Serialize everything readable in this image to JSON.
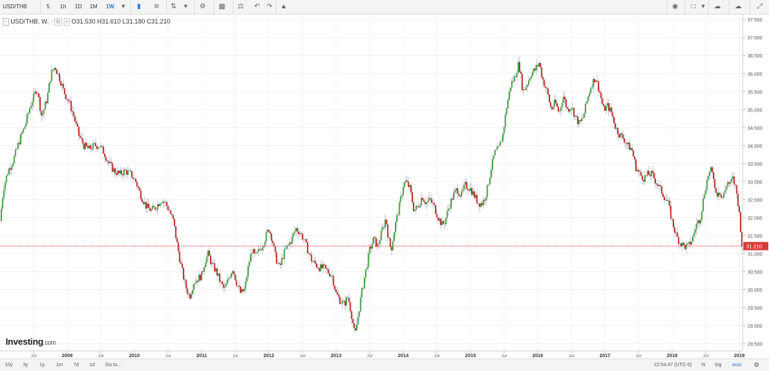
{
  "toolbar": {
    "symbol": "USD/THB",
    "periods": [
      "5",
      "1h",
      "1D",
      "1M",
      "1W"
    ],
    "active_period": "1W"
  },
  "legend": {
    "title": "USD/THB, W,",
    "open": "O31.530",
    "high": "H31.610",
    "low": "L31.180",
    "close": "C31.210"
  },
  "bottombar": {
    "ranges": [
      "10y",
      "3y",
      "1y",
      "1m",
      "7d",
      "1d"
    ],
    "goto": "Go to...",
    "time": "22:54:47 (UTC-5)",
    "percent": "%",
    "log": "log",
    "auto": "auto"
  },
  "logo": {
    "name": "Investing",
    "suffix": ".com"
  },
  "chart_data": {
    "type": "candlestick",
    "y_ticks": [
      "28.500",
      "29.000",
      "29.500",
      "30.000",
      "30.500",
      "31.000",
      "31.500",
      "32.000",
      "32.500",
      "33.000",
      "33.500",
      "34.000",
      "34.500",
      "35.000",
      "35.500",
      "36.000",
      "36.500",
      "37.000",
      "37.500"
    ],
    "ylim": [
      28.3,
      37.6
    ],
    "x_tick_labels": [
      "Jul",
      "2009",
      "Jul",
      "2010",
      "Jul",
      "2011",
      "Jul",
      "2012",
      "Jul",
      "2013",
      "Jul",
      "2014",
      "Jul",
      "2015",
      "Jul",
      "2016",
      "Jul",
      "2017",
      "Jul",
      "2018",
      "Jul",
      "2019"
    ],
    "x_tick_dates": [
      2008.5,
      2009,
      2009.5,
      2010,
      2010.5,
      2011,
      2011.5,
      2012,
      2012.5,
      2013,
      2013.5,
      2014,
      2014.5,
      2015,
      2015.5,
      2016,
      2016.5,
      2017,
      2017.5,
      2018,
      2018.5,
      2019
    ],
    "xlim": [
      2008.0,
      2019.05
    ],
    "last_price": "31.210",
    "last_value": 31.21,
    "up_color": "#3a9a3a",
    "down_color": "#b52020",
    "price_line_color": "#e05050",
    "close_path": [
      [
        2008.0,
        31.9
      ],
      [
        2008.05,
        32.8
      ],
      [
        2008.12,
        33.3
      ],
      [
        2008.2,
        33.6
      ],
      [
        2008.3,
        34.2
      ],
      [
        2008.38,
        34.6
      ],
      [
        2008.45,
        35.1
      ],
      [
        2008.55,
        35.6
      ],
      [
        2008.62,
        34.8
      ],
      [
        2008.7,
        35.3
      ],
      [
        2008.76,
        36.0
      ],
      [
        2008.82,
        36.2
      ],
      [
        2008.9,
        35.8
      ],
      [
        2008.95,
        35.5
      ],
      [
        2009.03,
        35.2
      ],
      [
        2009.1,
        34.8
      ],
      [
        2009.17,
        34.3
      ],
      [
        2009.25,
        34.0
      ],
      [
        2009.32,
        33.9
      ],
      [
        2009.4,
        34.0
      ],
      [
        2009.48,
        34.0
      ],
      [
        2009.55,
        33.8
      ],
      [
        2009.62,
        33.5
      ],
      [
        2009.7,
        33.3
      ],
      [
        2009.78,
        33.2
      ],
      [
        2009.86,
        33.3
      ],
      [
        2009.95,
        33.2
      ],
      [
        2010.02,
        33.0
      ],
      [
        2010.1,
        32.6
      ],
      [
        2010.18,
        32.3
      ],
      [
        2010.25,
        32.2
      ],
      [
        2010.32,
        32.3
      ],
      [
        2010.4,
        32.5
      ],
      [
        2010.46,
        32.4
      ],
      [
        2010.52,
        32.2
      ],
      [
        2010.58,
        31.9
      ],
      [
        2010.64,
        31.2
      ],
      [
        2010.7,
        30.6
      ],
      [
        2010.76,
        30.1
      ],
      [
        2010.82,
        29.8
      ],
      [
        2010.88,
        30.2
      ],
      [
        2010.94,
        30.3
      ],
      [
        2011.0,
        30.4
      ],
      [
        2011.05,
        30.8
      ],
      [
        2011.1,
        31.0
      ],
      [
        2011.15,
        30.7
      ],
      [
        2011.22,
        30.5
      ],
      [
        2011.28,
        30.2
      ],
      [
        2011.34,
        30.0
      ],
      [
        2011.4,
        30.3
      ],
      [
        2011.46,
        30.6
      ],
      [
        2011.52,
        30.2
      ],
      [
        2011.58,
        29.9
      ],
      [
        2011.64,
        30.0
      ],
      [
        2011.7,
        30.7
      ],
      [
        2011.75,
        31.1
      ],
      [
        2011.8,
        30.9
      ],
      [
        2011.86,
        31.1
      ],
      [
        2011.92,
        31.3
      ],
      [
        2012.0,
        31.7
      ],
      [
        2012.05,
        31.4
      ],
      [
        2012.1,
        30.9
      ],
      [
        2012.16,
        30.6
      ],
      [
        2012.22,
        31.0
      ],
      [
        2012.28,
        31.2
      ],
      [
        2012.34,
        31.4
      ],
      [
        2012.4,
        31.7
      ],
      [
        2012.46,
        31.6
      ],
      [
        2012.52,
        31.4
      ],
      [
        2012.58,
        31.1
      ],
      [
        2012.64,
        30.8
      ],
      [
        2012.7,
        30.7
      ],
      [
        2012.76,
        30.6
      ],
      [
        2012.82,
        30.6
      ],
      [
        2012.88,
        30.5
      ],
      [
        2012.94,
        30.4
      ],
      [
        2013.0,
        29.9
      ],
      [
        2013.06,
        29.7
      ],
      [
        2013.12,
        29.6
      ],
      [
        2013.18,
        29.8
      ],
      [
        2013.24,
        29.2
      ],
      [
        2013.28,
        28.7
      ],
      [
        2013.33,
        29.3
      ],
      [
        2013.38,
        29.9
      ],
      [
        2013.42,
        30.3
      ],
      [
        2013.46,
        30.7
      ],
      [
        2013.5,
        31.1
      ],
      [
        2013.56,
        31.4
      ],
      [
        2013.62,
        31.2
      ],
      [
        2013.68,
        31.6
      ],
      [
        2013.74,
        32.0
      ],
      [
        2013.78,
        31.4
      ],
      [
        2013.82,
        31.1
      ],
      [
        2013.88,
        31.8
      ],
      [
        2013.94,
        32.3
      ],
      [
        2014.0,
        32.9
      ],
      [
        2014.04,
        33.0
      ],
      [
        2014.1,
        32.8
      ],
      [
        2014.16,
        32.2
      ],
      [
        2014.22,
        32.3
      ],
      [
        2014.28,
        32.6
      ],
      [
        2014.34,
        32.4
      ],
      [
        2014.4,
        32.5
      ],
      [
        2014.46,
        32.3
      ],
      [
        2014.52,
        32.0
      ],
      [
        2014.58,
        31.8
      ],
      [
        2014.62,
        31.9
      ],
      [
        2014.68,
        32.3
      ],
      [
        2014.74,
        32.6
      ],
      [
        2014.8,
        32.8
      ],
      [
        2014.86,
        32.6
      ],
      [
        2014.92,
        32.9
      ],
      [
        2015.0,
        32.8
      ],
      [
        2015.06,
        32.6
      ],
      [
        2015.12,
        32.4
      ],
      [
        2015.18,
        32.4
      ],
      [
        2015.24,
        32.7
      ],
      [
        2015.3,
        33.3
      ],
      [
        2015.36,
        33.8
      ],
      [
        2015.42,
        33.9
      ],
      [
        2015.48,
        34.3
      ],
      [
        2015.54,
        35.1
      ],
      [
        2015.6,
        35.7
      ],
      [
        2015.66,
        35.9
      ],
      [
        2015.72,
        36.3
      ],
      [
        2015.78,
        35.5
      ],
      [
        2015.84,
        35.7
      ],
      [
        2015.9,
        36.0
      ],
      [
        2015.96,
        36.1
      ],
      [
        2016.02,
        36.3
      ],
      [
        2016.08,
        35.8
      ],
      [
        2016.14,
        35.5
      ],
      [
        2016.2,
        35.0
      ],
      [
        2016.26,
        35.2
      ],
      [
        2016.32,
        34.9
      ],
      [
        2016.38,
        35.4
      ],
      [
        2016.44,
        35.0
      ],
      [
        2016.5,
        35.1
      ],
      [
        2016.56,
        34.8
      ],
      [
        2016.62,
        34.6
      ],
      [
        2016.68,
        34.8
      ],
      [
        2016.74,
        35.3
      ],
      [
        2016.8,
        35.7
      ],
      [
        2016.86,
        35.9
      ],
      [
        2016.92,
        35.5
      ],
      [
        2016.98,
        35.0
      ],
      [
        2017.04,
        35.1
      ],
      [
        2017.1,
        34.9
      ],
      [
        2017.16,
        34.5
      ],
      [
        2017.22,
        34.3
      ],
      [
        2017.28,
        34.2
      ],
      [
        2017.34,
        34.0
      ],
      [
        2017.4,
        33.9
      ],
      [
        2017.46,
        33.4
      ],
      [
        2017.52,
        33.2
      ],
      [
        2017.58,
        33.1
      ],
      [
        2017.64,
        33.2
      ],
      [
        2017.7,
        33.2
      ],
      [
        2017.76,
        33.0
      ],
      [
        2017.82,
        32.8
      ],
      [
        2017.88,
        32.6
      ],
      [
        2017.94,
        32.4
      ],
      [
        2018.0,
        31.9
      ],
      [
        2018.06,
        31.5
      ],
      [
        2018.12,
        31.3
      ],
      [
        2018.18,
        31.2
      ],
      [
        2018.24,
        31.2
      ],
      [
        2018.3,
        31.4
      ],
      [
        2018.36,
        31.8
      ],
      [
        2018.42,
        32.0
      ],
      [
        2018.48,
        32.7
      ],
      [
        2018.54,
        33.2
      ],
      [
        2018.58,
        33.3
      ],
      [
        2018.62,
        33.1
      ],
      [
        2018.66,
        32.6
      ],
      [
        2018.7,
        32.8
      ],
      [
        2018.74,
        32.5
      ],
      [
        2018.78,
        32.7
      ],
      [
        2018.82,
        33.0
      ],
      [
        2018.86,
        32.9
      ],
      [
        2018.9,
        33.1
      ],
      [
        2018.95,
        32.8
      ],
      [
        2018.99,
        32.3
      ],
      [
        2019.02,
        31.7
      ],
      [
        2019.04,
        31.21
      ]
    ]
  }
}
